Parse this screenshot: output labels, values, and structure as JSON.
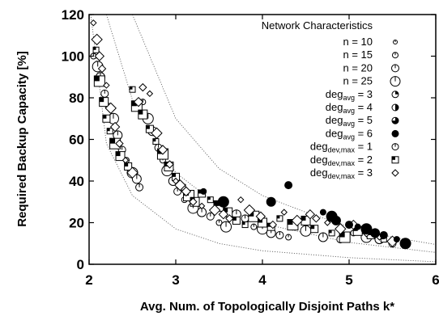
{
  "chart_data": {
    "type": "scatter",
    "xlabel": "Avg. Num. of Topologically Disjoint Paths k*",
    "ylabel": "Required Backup Capacity [%]",
    "xlim": [
      2,
      6
    ],
    "ylim": [
      0,
      120
    ],
    "x_ticks": [
      2,
      3,
      4,
      5,
      6
    ],
    "y_ticks": [
      0,
      20,
      40,
      60,
      80,
      100,
      120
    ],
    "grid": false,
    "legend": {
      "title": "Network Characteristics",
      "placement": "top-right",
      "entries": [
        {
          "label": "n = 10",
          "marker": "circle-small",
          "group": "n",
          "value": 10
        },
        {
          "label": "n = 15",
          "marker": "circle-medium",
          "group": "n",
          "value": 15
        },
        {
          "label": "n = 20",
          "marker": "circle-large",
          "group": "n",
          "value": 20
        },
        {
          "label": "n = 25",
          "marker": "circle-xlarge",
          "group": "n",
          "value": 25
        },
        {
          "label": "deg_avg = 3",
          "base": "deg",
          "sub": "avg",
          "rest": " = 3",
          "marker": "circle-fill-quarter"
        },
        {
          "label": "deg_avg = 4",
          "base": "deg",
          "sub": "avg",
          "rest": " = 4",
          "marker": "circle-fill-half"
        },
        {
          "label": "deg_avg = 5",
          "base": "deg",
          "sub": "avg",
          "rest": " = 5",
          "marker": "circle-fill-threequarter"
        },
        {
          "label": "deg_avg = 6",
          "base": "deg",
          "sub": "avg",
          "rest": " = 6",
          "marker": "circle-fill-full"
        },
        {
          "label": "deg_dev,max = 1",
          "base": "deg",
          "sub": "dev,max",
          "rest": " = 1",
          "marker": "circle"
        },
        {
          "label": "deg_dev,max = 2",
          "base": "deg",
          "sub": "dev,max",
          "rest": " = 2",
          "marker": "square"
        },
        {
          "label": "deg_dev,max = 3",
          "base": "deg",
          "sub": "dev,max",
          "rest": " = 3",
          "marker": "diamond"
        }
      ]
    },
    "reference_curves": [
      {
        "style": "dotted",
        "x": [
          2.02,
          2.2,
          2.5,
          3,
          3.5,
          4,
          5,
          6
        ],
        "y": [
          120,
          58,
          33,
          17,
          10,
          6.5,
          3.2,
          1.2
        ]
      },
      {
        "style": "dotted",
        "x": [
          2.2,
          2.5,
          3,
          3.5,
          4,
          5,
          6
        ],
        "y": [
          120,
          79,
          44,
          28,
          19.5,
          10.5,
          5.7
        ]
      },
      {
        "style": "dotted",
        "x": [
          2.5,
          3,
          3.5,
          4,
          4.5,
          5,
          5.5,
          6
        ],
        "y": [
          120,
          70,
          46,
          33,
          25,
          18,
          13,
          9.5
        ]
      }
    ],
    "series": [
      {
        "name": "deg_dev,max = 1",
        "marker": "circle",
        "points": [
          [
            2.05,
            100
          ],
          [
            2.1,
            95
          ],
          [
            2.13,
            90
          ],
          [
            2.18,
            82
          ],
          [
            2.22,
            76
          ],
          [
            2.28,
            70
          ],
          [
            2.33,
            62
          ],
          [
            2.38,
            55
          ],
          [
            2.43,
            50
          ],
          [
            2.5,
            44
          ],
          [
            2.55,
            41
          ],
          [
            2.58,
            37
          ],
          [
            2.62,
            78
          ],
          [
            2.68,
            70
          ],
          [
            2.73,
            64
          ],
          [
            2.8,
            56
          ],
          [
            2.85,
            50
          ],
          [
            2.9,
            45
          ],
          [
            2.97,
            40
          ],
          [
            3.02,
            35
          ],
          [
            3.1,
            31
          ],
          [
            3.2,
            27
          ],
          [
            3.3,
            25
          ],
          [
            3.4,
            23
          ],
          [
            3.5,
            20
          ],
          [
            3.58,
            18
          ],
          [
            3.7,
            24
          ],
          [
            3.8,
            22
          ],
          [
            3.9,
            18
          ],
          [
            4,
            17
          ],
          [
            4.1,
            15
          ],
          [
            4.2,
            14
          ],
          [
            4.3,
            13
          ],
          [
            4.5,
            16
          ],
          [
            4.7,
            13
          ],
          [
            4.9,
            12
          ],
          [
            5.05,
            15
          ],
          [
            5.2,
            13
          ],
          [
            5.35,
            12
          ],
          [
            5.5,
            10
          ],
          [
            5.65,
            9.5
          ]
        ]
      },
      {
        "name": "deg_dev,max = 2",
        "marker": "square",
        "points": [
          [
            2.08,
            103
          ],
          [
            2.12,
            88
          ],
          [
            2.17,
            78
          ],
          [
            2.2,
            70
          ],
          [
            2.24,
            64
          ],
          [
            2.3,
            58
          ],
          [
            2.36,
            52
          ],
          [
            2.45,
            47
          ],
          [
            2.5,
            84
          ],
          [
            2.55,
            76
          ],
          [
            2.62,
            72
          ],
          [
            2.7,
            65
          ],
          [
            2.77,
            59
          ],
          [
            2.85,
            53
          ],
          [
            2.92,
            47
          ],
          [
            3,
            42
          ],
          [
            3.08,
            37
          ],
          [
            3.15,
            33
          ],
          [
            3.22,
            30
          ],
          [
            3.3,
            34
          ],
          [
            3.4,
            31
          ],
          [
            3.5,
            28
          ],
          [
            3.6,
            25
          ],
          [
            3.7,
            21
          ],
          [
            3.8,
            19
          ],
          [
            3.9,
            23
          ],
          [
            4,
            20
          ],
          [
            4.1,
            18
          ],
          [
            4.2,
            22
          ],
          [
            4.35,
            19
          ],
          [
            4.5,
            21
          ],
          [
            4.6,
            17
          ],
          [
            4.8,
            15
          ],
          [
            4.95,
            13
          ],
          [
            5.1,
            16
          ],
          [
            5.25,
            14
          ],
          [
            5.4,
            12
          ]
        ]
      },
      {
        "name": "deg_dev,max = 3",
        "marker": "diamond",
        "points": [
          [
            2.05,
            116
          ],
          [
            2.09,
            108
          ],
          [
            2.12,
            100
          ],
          [
            2.15,
            94
          ],
          [
            2.2,
            86
          ],
          [
            2.25,
            75
          ],
          [
            2.3,
            66
          ],
          [
            2.35,
            58
          ],
          [
            2.42,
            50
          ],
          [
            2.5,
            44
          ],
          [
            2.57,
            78
          ],
          [
            2.62,
            85
          ],
          [
            2.7,
            82
          ],
          [
            2.78,
            63
          ],
          [
            2.85,
            55
          ],
          [
            2.93,
            48
          ],
          [
            3,
            40
          ],
          [
            3.05,
            38
          ],
          [
            3.12,
            35
          ],
          [
            3.2,
            30
          ],
          [
            3.3,
            28
          ],
          [
            3.45,
            26
          ],
          [
            3.55,
            24
          ],
          [
            3.62,
            22
          ],
          [
            3.75,
            31
          ],
          [
            3.85,
            26
          ],
          [
            3.98,
            23
          ],
          [
            4.12,
            19
          ],
          [
            4.25,
            25
          ],
          [
            4.4,
            21
          ],
          [
            4.55,
            24
          ],
          [
            4.62,
            22
          ],
          [
            4.75,
            20
          ],
          [
            4.9,
            17
          ],
          [
            5.05,
            19
          ],
          [
            5.2,
            15
          ],
          [
            5.35,
            13
          ],
          [
            5.5,
            11
          ]
        ]
      },
      {
        "name": "filled",
        "marker": "circle-fill-full",
        "points": [
          [
            3.32,
            35
          ],
          [
            3.55,
            30
          ],
          [
            4.1,
            30
          ],
          [
            4.3,
            38
          ],
          [
            4.7,
            25
          ],
          [
            4.8,
            23
          ],
          [
            4.85,
            21
          ],
          [
            5,
            19
          ],
          [
            5.1,
            18
          ],
          [
            5.2,
            17
          ],
          [
            5.3,
            15
          ],
          [
            5.4,
            14
          ],
          [
            5.55,
            12
          ],
          [
            5.65,
            10
          ]
        ]
      }
    ]
  }
}
